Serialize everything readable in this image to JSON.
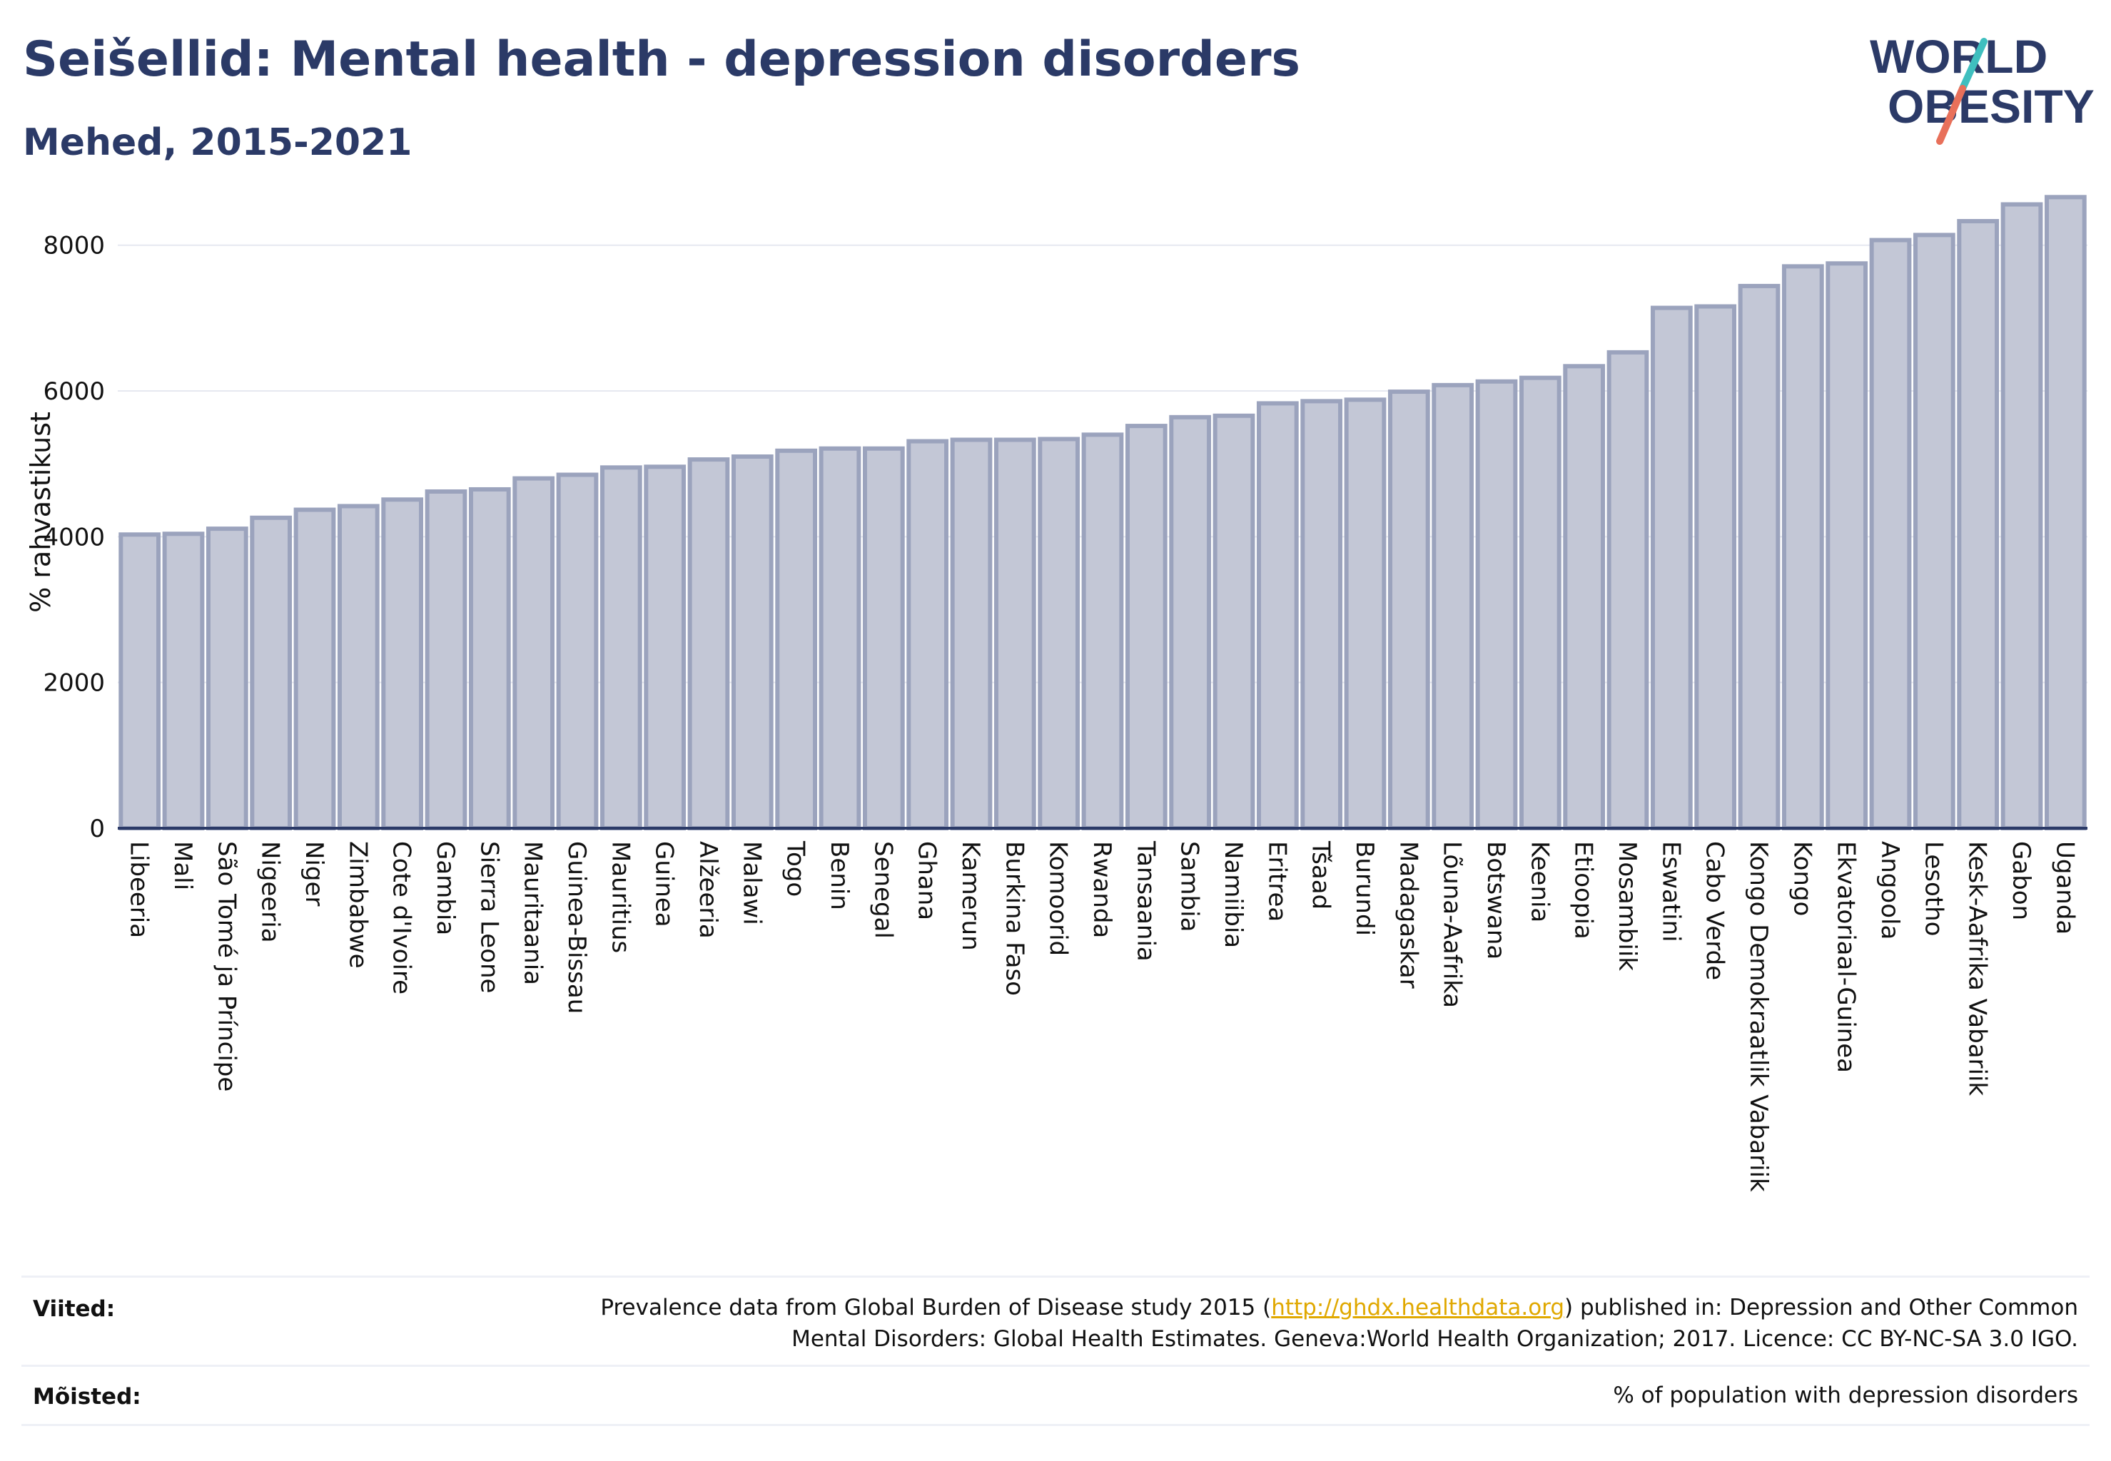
{
  "header": {
    "title": "Seišellid: Mental health - depression disorders",
    "subtitle": "Mehed, 2015-2021"
  },
  "logo": {
    "line1": "WORLD",
    "line2": "OBESITY"
  },
  "chart_data": {
    "type": "bar",
    "ylabel": "% rahvastikust",
    "xlabel": "",
    "ylim": [
      0,
      8800
    ],
    "yticks": [
      0,
      2000,
      4000,
      6000,
      8000
    ],
    "grid": true,
    "bar_color": "#c3c7d6",
    "bar_edge_color": "#9ba3bd",
    "categories": [
      "Libeeria",
      "Mali",
      "São Tomé ja Príncipe",
      "Nigeeria",
      "Niger",
      "Zimbabwe",
      "Cote d'Ivoire",
      "Gambia",
      "Sierra Leone",
      "Mauritaania",
      "Guinea-Bissau",
      "Mauritius",
      "Guinea",
      "Alžeeria",
      "Malawi",
      "Togo",
      "Benin",
      "Senegal",
      "Ghana",
      "Kamerun",
      "Burkina Faso",
      "Komoorid",
      "Rwanda",
      "Tansaania",
      "Sambia",
      "Namiibia",
      "Eritrea",
      "Tšaad",
      "Burundi",
      "Madagaskar",
      "Lõuna-Aafrika",
      "Botswana",
      "Keenia",
      "Etioopia",
      "Mosambiik",
      "Eswatini",
      "Cabo Verde",
      "Kongo Demokraatlik Vabariik",
      "Kongo",
      "Ekvatoriaal-Guinea",
      "Angoola",
      "Lesotho",
      "Kesk-Aafrika Vabariik",
      "Gabon",
      "Uganda"
    ],
    "values": [
      4030,
      4040,
      4110,
      4260,
      4370,
      4420,
      4510,
      4620,
      4650,
      4800,
      4850,
      4950,
      4960,
      5060,
      5100,
      5180,
      5210,
      5210,
      5310,
      5330,
      5330,
      5340,
      5400,
      5520,
      5640,
      5660,
      5830,
      5860,
      5880,
      5990,
      6080,
      6130,
      6180,
      6340,
      6530,
      7140,
      7160,
      7440,
      7710,
      7750,
      8070,
      8140,
      8330,
      8560,
      8660
    ]
  },
  "footer": {
    "sources_label": "Viited:",
    "sources_pre": "Prevalence data from Global Burden of Disease study 2015 (",
    "sources_link": "http://ghdx.healthdata.org",
    "sources_post": ") published in: Depression and Other Common",
    "sources_line2": "Mental Disorders: Global Health Estimates. Geneva:World Health Organization; 2017. Licence: CC BY-NC-SA 3.0 IGO.",
    "definitions_label": "Mõisted:",
    "definitions_text": "% of population with depression disorders"
  },
  "colors": {
    "title": "#2b3a67",
    "accent_teal": "#3fbfbf",
    "accent_red": "#e8705a",
    "link": "#e0a800"
  }
}
